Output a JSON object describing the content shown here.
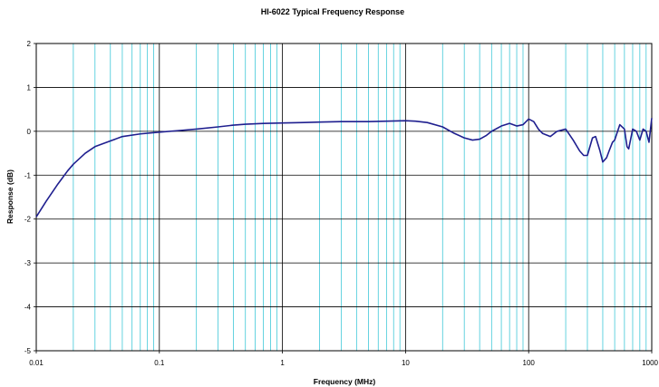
{
  "chart_data": {
    "type": "line",
    "title": "HI-6022 Typical Frequency Response",
    "xlabel": "Frequency (MHz)",
    "ylabel": "Response (dB)",
    "xscale": "log",
    "xlim": [
      0.01,
      1000
    ],
    "ylim": [
      -5,
      2
    ],
    "x_tick_labels": [
      "0.01",
      "0.1",
      "1",
      "10",
      "100",
      "1000"
    ],
    "y_tick_labels": [
      "2",
      "1",
      "0",
      "-1",
      "-2",
      "-3",
      "-4",
      "-5"
    ],
    "grid": true,
    "legend": "none",
    "colors": {
      "line": "#1f1f8f",
      "major_grid": "#000000",
      "minor_grid": "#40c8d8",
      "major_h_grid": "#000000"
    },
    "series": [
      {
        "x": [
          0.01,
          0.012,
          0.015,
          0.018,
          0.02,
          0.025,
          0.03,
          0.04,
          0.05,
          0.07,
          0.1,
          0.15,
          0.2,
          0.3,
          0.4,
          0.5,
          0.7,
          1,
          1.5,
          2,
          3,
          4,
          5,
          7,
          10,
          12,
          15,
          20,
          25,
          30,
          35,
          40,
          45,
          50,
          60,
          70,
          80,
          90,
          100,
          110,
          120,
          130,
          150,
          170,
          200,
          230,
          260,
          280,
          300,
          330,
          350,
          380,
          400,
          430,
          450,
          480,
          500,
          550,
          600,
          630,
          650,
          700,
          750,
          800,
          850,
          900,
          950,
          1000
        ],
        "y": [
          -1.95,
          -1.6,
          -1.2,
          -0.9,
          -0.75,
          -0.5,
          -0.35,
          -0.22,
          -0.12,
          -0.06,
          -0.02,
          0.02,
          0.05,
          0.1,
          0.14,
          0.16,
          0.18,
          0.19,
          0.2,
          0.21,
          0.22,
          0.22,
          0.22,
          0.23,
          0.24,
          0.23,
          0.2,
          0.1,
          -0.05,
          -0.15,
          -0.2,
          -0.18,
          -0.1,
          0.0,
          0.12,
          0.18,
          0.12,
          0.15,
          0.28,
          0.22,
          0.05,
          -0.05,
          -0.12,
          0.0,
          0.05,
          -0.2,
          -0.45,
          -0.55,
          -0.55,
          -0.15,
          -0.12,
          -0.45,
          -0.7,
          -0.6,
          -0.45,
          -0.25,
          -0.2,
          0.15,
          0.05,
          -0.35,
          -0.4,
          0.05,
          0.0,
          -0.2,
          0.05,
          0.0,
          -0.25,
          0.3
        ]
      }
    ]
  }
}
